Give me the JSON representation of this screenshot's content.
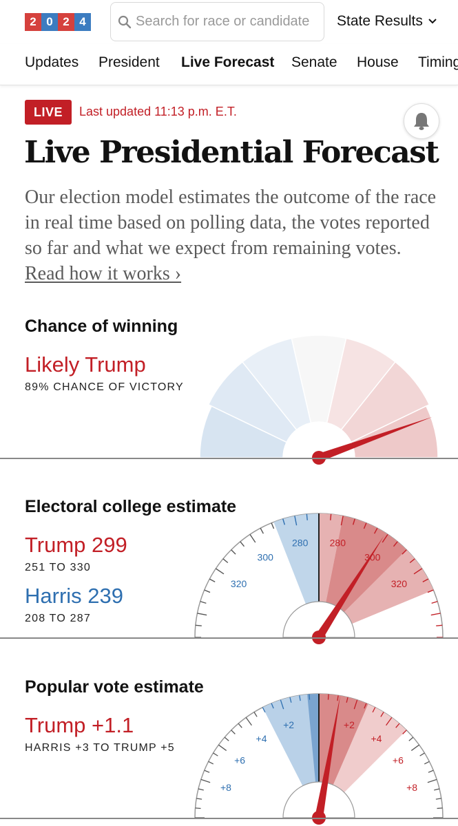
{
  "header": {
    "logo_digits": [
      "2",
      "0",
      "2",
      "4"
    ],
    "search_placeholder": "Search for race or candidate",
    "state_results_label": "State Results",
    "icons": {
      "search": "search-icon",
      "chevron": "chevron-down-icon",
      "bell": "bell-icon"
    }
  },
  "nav": {
    "items": [
      "Updates",
      "President",
      "Live Forecast",
      "Senate",
      "House",
      "Timing"
    ],
    "active": "Live Forecast"
  },
  "live": {
    "badge": "LIVE",
    "updated": "Last updated 11:13 p.m. E.T."
  },
  "page": {
    "title": "Live Presidential Forecast",
    "description": "Our election model estimates the outcome of the race in real time based on polling data, the votes reported so far and what we expect from remaining votes.",
    "read_more": "Read how it works ›"
  },
  "chance": {
    "section_title": "Chance of winning",
    "headline": "Likely Trump",
    "subline": "89% CHANCE OF VICTORY",
    "trump_chance": 0.89
  },
  "electoral": {
    "section_title": "Electoral college estimate",
    "trump_label": "Trump 299",
    "trump_range": "251 TO 330",
    "harris_label": "Harris 239",
    "harris_range": "208 TO 287",
    "tick_labels": [
      "280",
      "300",
      "320"
    ],
    "trump_estimate": 299,
    "trump_low": 251,
    "trump_high": 330
  },
  "popular": {
    "section_title": "Popular vote estimate",
    "headline": "Trump +1.1",
    "range": "HARRIS +3 TO TRUMP +5",
    "tick_labels": [
      "+2",
      "+4",
      "+6",
      "+8"
    ],
    "estimate": 1.1,
    "low": -3,
    "high": 5
  },
  "colors": {
    "red": "#c21f26",
    "blue": "#2e6fb0",
    "light_red": "#e8b4b4",
    "light_blue": "#b9d1e8"
  }
}
